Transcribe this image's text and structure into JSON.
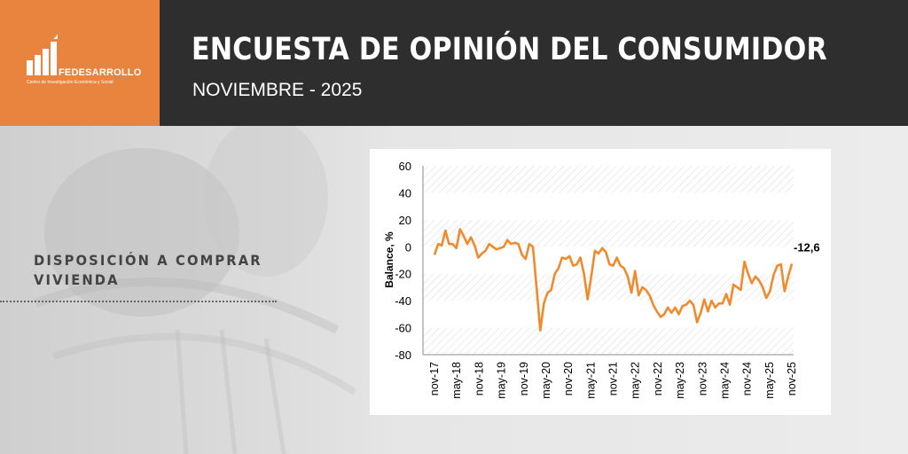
{
  "header": {
    "logo_name": "FEDESARROLLO",
    "logo_subtitle": "Centro de Investigación Económica y Social",
    "title": "ENCUESTA DE OPINIÓN DEL CONSUMIDOR",
    "subtitle": "NOVIEMBRE - 2025"
  },
  "side": {
    "label_line1": "DISPOSICIÓN A COMPRAR",
    "label_line2": "VIVIENDA"
  },
  "colors": {
    "accent": "#e8843e",
    "header_bg": "#2e2e2e",
    "line": "#f08a2e"
  },
  "chart_data": {
    "type": "line",
    "ylabel": "Balance, %",
    "ylim": [
      -80,
      60
    ],
    "yticks": [
      60,
      40,
      20,
      0,
      -20,
      -40,
      -60,
      -80
    ],
    "x_tick_labels": [
      "nov-17",
      "may-18",
      "nov-18",
      "may-19",
      "nov-19",
      "may-20",
      "nov-20",
      "may-21",
      "nov-21",
      "may-22",
      "nov-22",
      "may-23",
      "nov-23",
      "may-24",
      "nov-24",
      "may-25",
      "nov-25"
    ],
    "grid": "horizontal hatched bands",
    "last_label": "-12,6",
    "series": [
      {
        "values": [
          -6,
          2,
          1,
          12,
          2,
          2,
          -1,
          13,
          8,
          2,
          7,
          1,
          -8,
          -5,
          -3,
          2,
          0,
          -2,
          -1,
          0,
          5,
          2,
          3,
          2,
          -6,
          -9,
          2,
          0,
          -30,
          -62,
          -42,
          -34,
          -32,
          -20,
          -16,
          -8,
          -9,
          -7,
          -14,
          -13,
          -8,
          -20,
          -39,
          -22,
          -3,
          -5,
          -1,
          -4,
          -13,
          -14,
          -8,
          -14,
          -16,
          -22,
          -34,
          -18,
          -36,
          -30,
          -32,
          -36,
          -43,
          -48,
          -52,
          -50,
          -45,
          -49,
          -45,
          -50,
          -44,
          -43,
          -40,
          -43,
          -56,
          -49,
          -39,
          -48,
          -40,
          -45,
          -42,
          -42,
          -35,
          -43,
          -28,
          -30,
          -32,
          -11,
          -20,
          -27,
          -22,
          -25,
          -30,
          -38,
          -33,
          -21,
          -14,
          -13,
          -33,
          -22,
          -12.6
        ]
      }
    ]
  }
}
